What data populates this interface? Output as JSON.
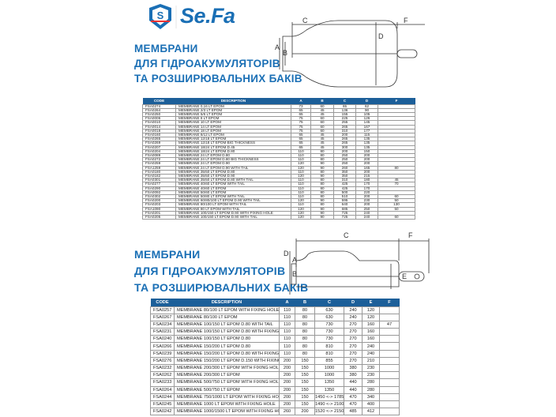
{
  "brand": {
    "name": "Se.Fa",
    "colors": {
      "primary": "#1a6fb5",
      "table_header": "#1c5f99"
    }
  },
  "section1": {
    "heading": [
      "МЕМБРАНИ",
      "ДЛЯ ГІДРОАКУМУЛЯТОРІВ",
      "ТА РОЗШИРЮВАЛЬНИХ БАКІВ"
    ],
    "diagram_labels": {
      "a": "A",
      "b": "B",
      "c": "C",
      "d": "D",
      "f": "F"
    },
    "columns": [
      "CODE",
      "DESCRIPTION",
      "A",
      "B",
      "C",
      "D",
      "F"
    ],
    "rows": [
      [
        "FSA0274",
        "MEMBRANE 0,16 LT EPOM",
        "73",
        "60",
        "65",
        "62",
        ""
      ],
      [
        "FSA0264",
        "MEMBRANE 2/3 LT EPOM",
        "65",
        "45",
        "136",
        "90",
        ""
      ],
      [
        "FSA0250",
        "MEMBRANE 5/6 LT EPOM",
        "65",
        "45",
        "155",
        "105",
        ""
      ],
      [
        "FSA0006",
        "MEMBRANE 8 LT EPOM",
        "75",
        "60",
        "225",
        "126",
        ""
      ],
      [
        "FSA0010",
        "MEMBRANE 10 LT EPOM",
        "75",
        "60",
        "255",
        "145",
        ""
      ],
      [
        "FSA0014",
        "MEMBRANE 14 LT EPOM",
        "75",
        "60",
        "265",
        "167",
        ""
      ],
      [
        "FSA0018",
        "MEMBRANE 18 LT EPOM",
        "75",
        "60",
        "310",
        "177",
        ""
      ],
      [
        "FSA0160",
        "MEMBRANE 8/12 LT EPOM",
        "65",
        "45",
        "200",
        "115",
        ""
      ],
      [
        "FSA0265",
        "MEMBRANE 12/18 LT EPOM",
        "65",
        "45",
        "265",
        "135",
        ""
      ],
      [
        "FSA0269",
        "MEMBRANE 12/18 LT EPOM BIG THICKNESS",
        "65",
        "45",
        "265",
        "135",
        ""
      ],
      [
        "FSA0207",
        "MEMBRANE 18/24 LT EPOM D.45",
        "65",
        "45",
        "300",
        "135",
        ""
      ],
      [
        "FSA0204",
        "MEMBRANE 18/24 LT EPOM D.80",
        "110",
        "80",
        "200",
        "150",
        ""
      ],
      [
        "FSA0089",
        "MEMBRANE 24 LT EPOM D.80",
        "110",
        "80",
        "250",
        "200",
        ""
      ],
      [
        "FSA0272",
        "MEMBRANE 24 LT EPOM D.80 BIG THICKNESS",
        "110",
        "80",
        "250",
        "200",
        ""
      ],
      [
        "FSA0259",
        "MEMBRANE 24 LT EPOM D.90",
        "120",
        "90",
        "250",
        "200",
        ""
      ],
      [
        "FSA1259",
        "MEMBRANE 24 LT EPOM D.90 WITH TAIL",
        "120",
        "90",
        "260",
        "165",
        "80"
      ],
      [
        "FSA0180",
        "MEMBRANE 35/50 LT EPOM D.80",
        "110",
        "80",
        "350",
        "200",
        ""
      ],
      [
        "FSA0182",
        "MEMBRANE 35/50 LT EPOM D.90",
        "120",
        "90",
        "350",
        "215",
        ""
      ],
      [
        "FSA0301",
        "MEMBRANE 35/50 LT EPOM D.80 WITH TAIL",
        "110",
        "80",
        "310",
        "180",
        "45"
      ],
      [
        "FSA0277",
        "MEMBRANE 40/60 LT EPOM WITH TAIL",
        "110",
        "80",
        "425",
        "170",
        "70"
      ],
      [
        "FSA0290",
        "MEMBRANE 40/60 LT EPOM",
        "110",
        "80",
        "425",
        "170",
        ""
      ],
      [
        "FSA0092",
        "MEMBRANE 50/60 LT EPOM",
        "110",
        "80",
        "500",
        "220",
        ""
      ],
      [
        "FSA0302",
        "MEMBRANE 50/80 LT EPOM WITH TAIL",
        "110",
        "80",
        "510",
        "200",
        "60"
      ],
      [
        "FSA0200",
        "MEMBRANE 60/80/100 LT EPOM D.90 WITH TAIL",
        "120",
        "90",
        "595",
        "230",
        "50"
      ],
      [
        "FSA0203",
        "MEMBRANE 80/100 LT EPOM WITH TAIL",
        "110",
        "80",
        "640",
        "200",
        "130"
      ],
      [
        "FSA1090",
        "MEMBRANE 80 LT EPOM WITH TAIL",
        "120",
        "90",
        "685",
        "250",
        "50"
      ],
      [
        "FSA0201",
        "MEMBRANE 100/150 LT EPOM D.90 WITH FIXING HOLE",
        "120",
        "90",
        "725",
        "240",
        ""
      ],
      [
        "FSA0205",
        "MEMBRANE 100/150 LT EPOM D.90 WITH TAIL",
        "120",
        "90",
        "725",
        "240",
        "60"
      ]
    ]
  },
  "section2": {
    "heading": [
      "МЕМБРАНИ",
      "ДЛЯ ГІДРОАКУМУЛЯТОРІВ",
      "ТА РОЗШИРЮВАЛЬНИХ БАКІВ"
    ],
    "diagram_labels": {
      "a": "A",
      "b": "B",
      "c": "C",
      "d": "D",
      "e": "E",
      "f": "F"
    },
    "columns": [
      "CODE",
      "DESCRIPTION",
      "A",
      "B",
      "C",
      "D",
      "E",
      "F"
    ],
    "rows": [
      [
        "FSA0257",
        "MEMBRANE 80/100 LT EPOM WITH FIXING HOLE",
        "110",
        "80",
        "630",
        "240",
        "120",
        ""
      ],
      [
        "FSA0267",
        "MEMBRANE 80/100 LT EPOM",
        "110",
        "80",
        "630",
        "240",
        "120",
        ""
      ],
      [
        "FSA0234",
        "MEMBRANE 100/150 LT EPOM D.80 WITH TAIL",
        "110",
        "80",
        "730",
        "270",
        "160",
        "47"
      ],
      [
        "FSA0231",
        "MEMBRANE 100/150 LT EPOM D.80 WITH FIXING HOLE",
        "110",
        "80",
        "730",
        "270",
        "160",
        ""
      ],
      [
        "FSA0240",
        "MEMBRANE 100/150 LT EPOM D.80",
        "110",
        "80",
        "730",
        "270",
        "160",
        ""
      ],
      [
        "FSA0266",
        "MEMBRANE 150/200 LT EPOM D.80",
        "110",
        "80",
        "810",
        "270",
        "240",
        ""
      ],
      [
        "FSA0239",
        "MEMBRANE 150/200 LT EPOM D.80 WITH FIXING HOLE",
        "110",
        "80",
        "810",
        "270",
        "240",
        ""
      ],
      [
        "FSA0276",
        "MEMBRANE 150/200 LT EPOM D.150 WITH FIXING HOLE",
        "200",
        "150",
        "855",
        "270",
        "210",
        ""
      ],
      [
        "FSA0232",
        "MEMBRANE 200/300 LT EPOM WITH FIXING HOLE",
        "200",
        "150",
        "1000",
        "380",
        "230",
        ""
      ],
      [
        "FSA0262",
        "MEMBRANE 200/300 LT EPOM",
        "200",
        "150",
        "1000",
        "380",
        "230",
        ""
      ],
      [
        "FSA0233",
        "MEMBRANE 500/750 LT EPOM WITH FIXING HOLE",
        "200",
        "150",
        "1350",
        "440",
        "280",
        ""
      ],
      [
        "FSA0264",
        "MEMBRANE 500/750 LT EPOM",
        "200",
        "150",
        "1350",
        "440",
        "280",
        ""
      ],
      [
        "FSA0244",
        "MEMBRANE 750/1000 LT EPOM WITH FIXING HOLE",
        "200",
        "150",
        "1450 <-> 1785",
        "470",
        "340",
        ""
      ],
      [
        "FSA0245",
        "MEMBRANE 1000 LT EPOM WITH FIXING HOLE",
        "200",
        "150",
        "1490 <-> 2100",
        "470",
        "400",
        ""
      ],
      [
        "FSA0242",
        "MEMBRANE 1000/1500 LT EPOM WITH FIXING HOLE",
        "260",
        "200",
        "1520 <-> 2150",
        "485",
        "412",
        ""
      ]
    ]
  }
}
